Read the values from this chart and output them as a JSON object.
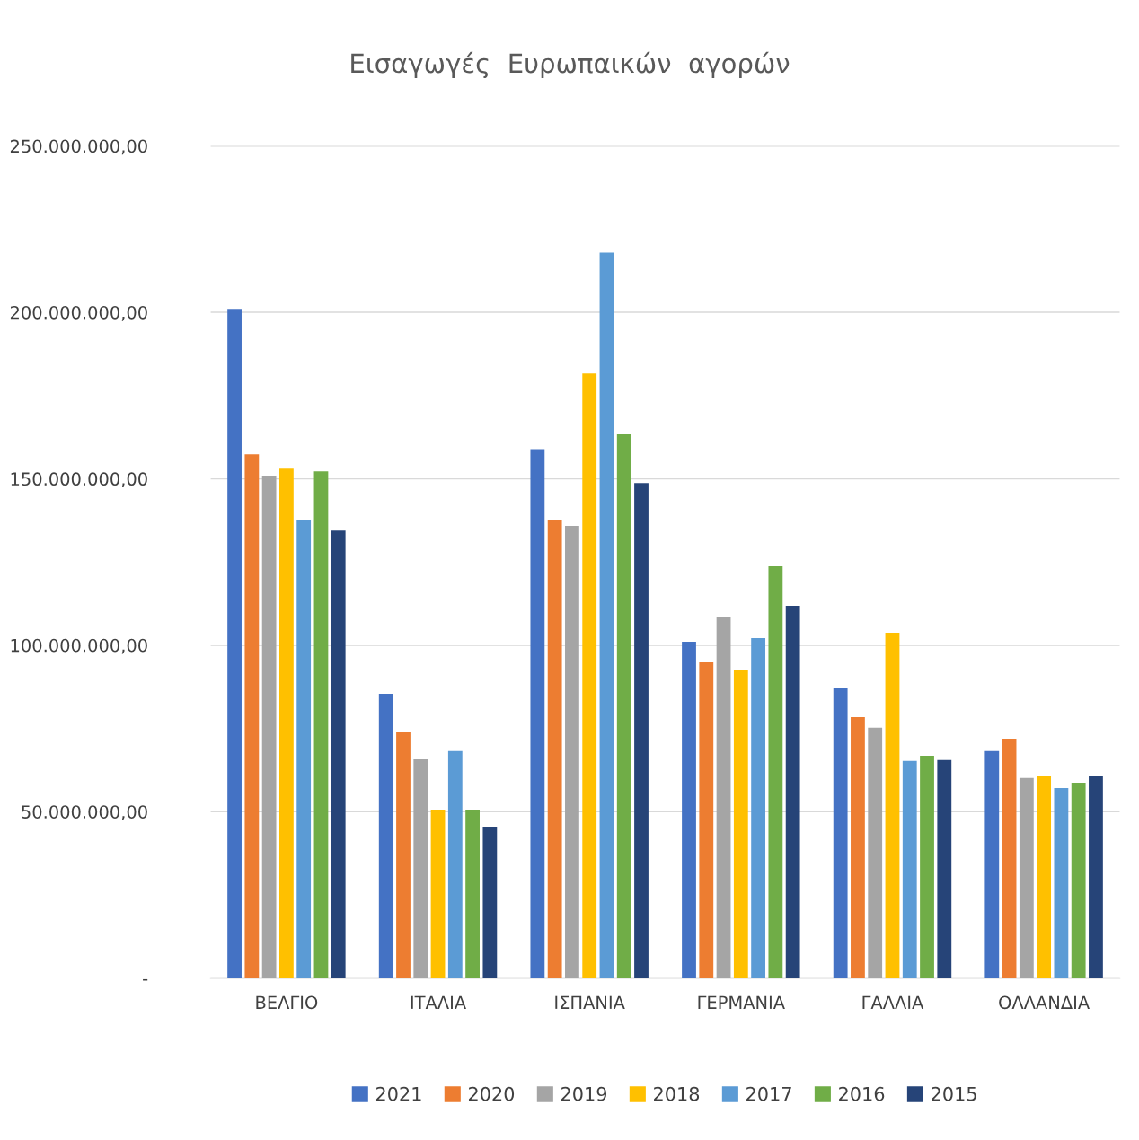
{
  "chart_data": {
    "type": "bar",
    "title": "Εισαγωγές  Ευρωπαικών  αγορών",
    "categories": [
      "ΒΕΛΓΙΟ",
      "ΙΤΑΛΙΑ",
      "ΙΣΠΑΝΙΑ",
      "ΓΕΡΜΑΝΙΑ",
      "ΓΑΛΛΙΑ",
      "ΟΛΛΑΝΔΙΑ"
    ],
    "series": [
      {
        "name": "2021",
        "color": "#4472c4",
        "values": [
          201000000,
          85400000,
          158900000,
          101000000,
          87000000,
          68200000
        ]
      },
      {
        "name": "2020",
        "color": "#ed7d31",
        "values": [
          157300000,
          73800000,
          137700000,
          94800000,
          78400000,
          71900000
        ]
      },
      {
        "name": "2019",
        "color": "#a5a5a5",
        "values": [
          150900000,
          66000000,
          135800000,
          108600000,
          75200000,
          60100000
        ]
      },
      {
        "name": "2018",
        "color": "#ffc000",
        "values": [
          153300000,
          50600000,
          181600000,
          92700000,
          103700000,
          60600000
        ]
      },
      {
        "name": "2017",
        "color": "#5b9bd5",
        "values": [
          137700000,
          68200000,
          217900000,
          102100000,
          65200000,
          57100000
        ]
      },
      {
        "name": "2016",
        "color": "#70ad47",
        "values": [
          152200000,
          50600000,
          163500000,
          123900000,
          66800000,
          58700000
        ]
      },
      {
        "name": "2015",
        "color": "#264478",
        "values": [
          134700000,
          45500000,
          148700000,
          111800000,
          65500000,
          60600000
        ]
      }
    ],
    "ylim": [
      0,
      250000000
    ],
    "yticks": [
      {
        "value": 0,
        "label": "-"
      },
      {
        "value": 50000000,
        "label": "50.000.000,00"
      },
      {
        "value": 100000000,
        "label": "100.000.000,00"
      },
      {
        "value": 150000000,
        "label": "150.000.000,00"
      },
      {
        "value": 200000000,
        "label": "200.000.000,00"
      },
      {
        "value": 250000000,
        "label": "250.000.000,00"
      }
    ],
    "grid": "y",
    "legend": "bottom"
  }
}
